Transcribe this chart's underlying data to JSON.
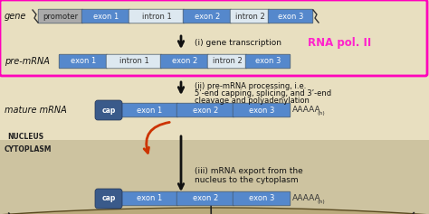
{
  "bg_color": "#cdc3a0",
  "nucleus_bg_color": "#e8dfc0",
  "cytoplasm_bg_color": "#cdc3a0",
  "pink_box_color": "#ff00bb",
  "blue_exon_color": "#5588cc",
  "white_intron_color": "#dde8f0",
  "gray_promoter_color": "#aaaaaa",
  "cap_color": "#3a5a8a",
  "text_color": "#111111",
  "pink_text_color": "#ff22cc",
  "arrow_color": "#111111",
  "orange_arrow_color": "#cc3300",
  "membrane_color": "#8b7340",
  "membrane_fill": "#a89060",
  "gene_label": "gene",
  "premrna_label": "pre-mRNA",
  "mature_label": "mature mRNA",
  "annotation1": "(i) gene transcription",
  "annotation1_pink": "RNA pol. II",
  "annotation2_line1": "(ii) pre-mRNA processing, i.e.",
  "annotation2_line2": "5’-end capping, splicing, and 3’-end",
  "annotation2_line3": "cleavage and polyadenylation",
  "annotation3_line1": "(iii) mRNA export from the",
  "annotation3_line2": "nucleus to the cytoplasm",
  "nucleus_label": "NUCLEUS",
  "cytoplasm_label": "CYTOPLASM",
  "aaaaa_label": "AAAAA",
  "n_subscript": "(n)",
  "cap_label": "cap"
}
